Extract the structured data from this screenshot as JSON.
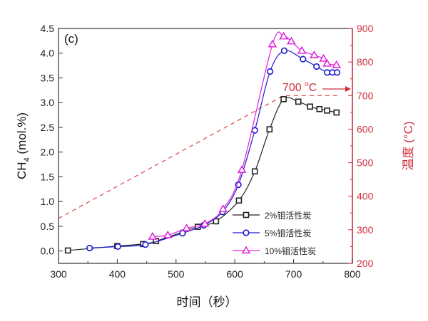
{
  "chart_data": {
    "type": "line",
    "panel_label": "(c)",
    "xlabel": "时间（秒）",
    "ylabel": "CH4 (mol.%)",
    "ylabel_main": "CH",
    "ylabel_sub": "4",
    "ylabel_rest": " (mol.%)",
    "y2label": "温度 (°C)",
    "xlim": [
      300,
      800
    ],
    "ylim": [
      -0.25,
      4.5
    ],
    "y2lim": [
      200,
      900
    ],
    "xticks": [
      300,
      400,
      500,
      600,
      700,
      800
    ],
    "yticks": [
      "0.0",
      "0.5",
      "1.0",
      "1.5",
      "2.0",
      "2.5",
      "3.0",
      "3.5",
      "4.0",
      "4.5"
    ],
    "y2ticks": [
      200,
      300,
      400,
      500,
      600,
      700,
      800,
      900
    ],
    "legend_position": "bottom-center",
    "series": [
      {
        "name": "2%钼活性炭",
        "marker": "square",
        "color": "#222222",
        "x": [
          316,
          400,
          444,
          466,
          537,
          568,
          607,
          634,
          659,
          683,
          708,
          728,
          744,
          757,
          773
        ],
        "y": [
          0.01,
          0.1,
          0.14,
          0.2,
          0.49,
          0.6,
          1.02,
          1.61,
          2.46,
          3.07,
          3.02,
          2.92,
          2.87,
          2.84,
          2.8
        ]
      },
      {
        "name": "5%钼活性炭",
        "marker": "circle",
        "color": "#1a1ad0",
        "x": [
          353,
          401,
          448,
          511,
          547,
          579,
          606,
          634,
          660,
          684,
          716,
          739,
          757,
          766,
          774
        ],
        "y": [
          0.06,
          0.09,
          0.13,
          0.36,
          0.52,
          0.79,
          1.34,
          2.44,
          3.63,
          4.05,
          3.88,
          3.73,
          3.61,
          3.61,
          3.61
        ]
      },
      {
        "name": "10%钼活性炭",
        "marker": "triangle",
        "color": "#e020e0",
        "x": [
          460,
          486,
          518,
          549,
          580,
          612,
          664,
          683,
          696,
          714,
          735,
          751,
          757,
          773
        ],
        "y": [
          0.29,
          0.32,
          0.46,
          0.55,
          0.85,
          1.64,
          4.18,
          4.34,
          4.24,
          4.05,
          3.96,
          3.89,
          3.79,
          3.76
        ]
      }
    ],
    "temperature": {
      "axis": "right",
      "color": "#e05050",
      "style": "dashed",
      "x": [
        300,
        683,
        775
      ],
      "y": [
        334,
        700,
        700
      ]
    },
    "annotation": {
      "text": "700 °C",
      "text_main": "700 ",
      "text_sup": "o",
      "text_unit": "C",
      "arrow_direction": "right",
      "color": "#d0303a"
    }
  }
}
